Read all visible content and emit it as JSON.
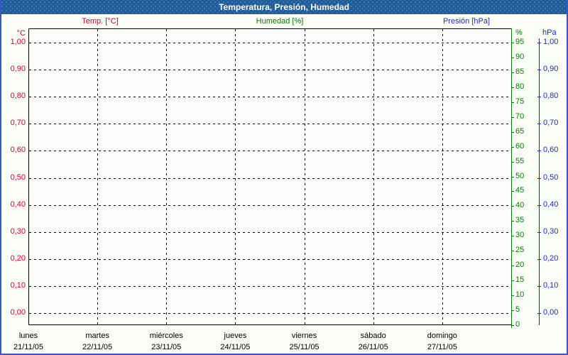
{
  "title": "Temperatura, Presión, Humedad",
  "legend": {
    "temp": {
      "label": "Temp. [°C]",
      "color": "#cc0033"
    },
    "humidity": {
      "label": "Humedad [%]",
      "color": "#008000"
    },
    "pressure": {
      "label": "Presión [hPa]",
      "color": "#2424cc"
    }
  },
  "chart_data": {
    "type": "line",
    "title": "Temperatura, Presión, Humedad",
    "grid": true,
    "legend_position": "top",
    "categories": [
      {
        "weekday": "lunes",
        "date": "21/11/05"
      },
      {
        "weekday": "martes",
        "date": "22/11/05"
      },
      {
        "weekday": "miércoles",
        "date": "23/11/05"
      },
      {
        "weekday": "jueves",
        "date": "24/11/05"
      },
      {
        "weekday": "viernes",
        "date": "25/11/05"
      },
      {
        "weekday": "sábado",
        "date": "26/11/05"
      },
      {
        "weekday": "domingo",
        "date": "27/11/05"
      }
    ],
    "axes": {
      "temp": {
        "side": "left",
        "unit": "°C",
        "color": "#cc0033",
        "min": 0.0,
        "max": 1.0,
        "ticks": [
          "1,00",
          "0,90",
          "0,80",
          "0,70",
          "0,60",
          "0,50",
          "0,40",
          "0,30",
          "0,20",
          "0,10",
          "0,00"
        ]
      },
      "humidity": {
        "side": "right-inner",
        "unit": "%",
        "color": "#008000",
        "min": 0,
        "max": 95,
        "ticks": [
          "95",
          "90",
          "85",
          "80",
          "75",
          "70",
          "65",
          "60",
          "55",
          "50",
          "45",
          "40",
          "35",
          "30",
          "25",
          "20",
          "15",
          "10",
          "5",
          "0"
        ]
      },
      "pressure": {
        "side": "right-outer",
        "unit": "hPa",
        "color": "#2424cc",
        "min": 0.0,
        "max": 1.0,
        "ticks": [
          "1,00",
          "0,90",
          "0,80",
          "0,70",
          "0,60",
          "0,50",
          "0,40",
          "0,30",
          "0,20",
          "0,10",
          "0,00"
        ]
      }
    },
    "series": [
      {
        "name": "Temp. [°C]",
        "axis": "temp",
        "color": "#cc0033",
        "values": []
      },
      {
        "name": "Humedad [%]",
        "axis": "humidity",
        "color": "#008000",
        "values": []
      },
      {
        "name": "Presión [hPa]",
        "axis": "pressure",
        "color": "#2424cc",
        "values": []
      }
    ]
  },
  "colors": {
    "titlebar_bg": "#1e5c99",
    "frame_border": "#3a57c4",
    "background": "#fbfdf7",
    "grid": "#000000"
  }
}
